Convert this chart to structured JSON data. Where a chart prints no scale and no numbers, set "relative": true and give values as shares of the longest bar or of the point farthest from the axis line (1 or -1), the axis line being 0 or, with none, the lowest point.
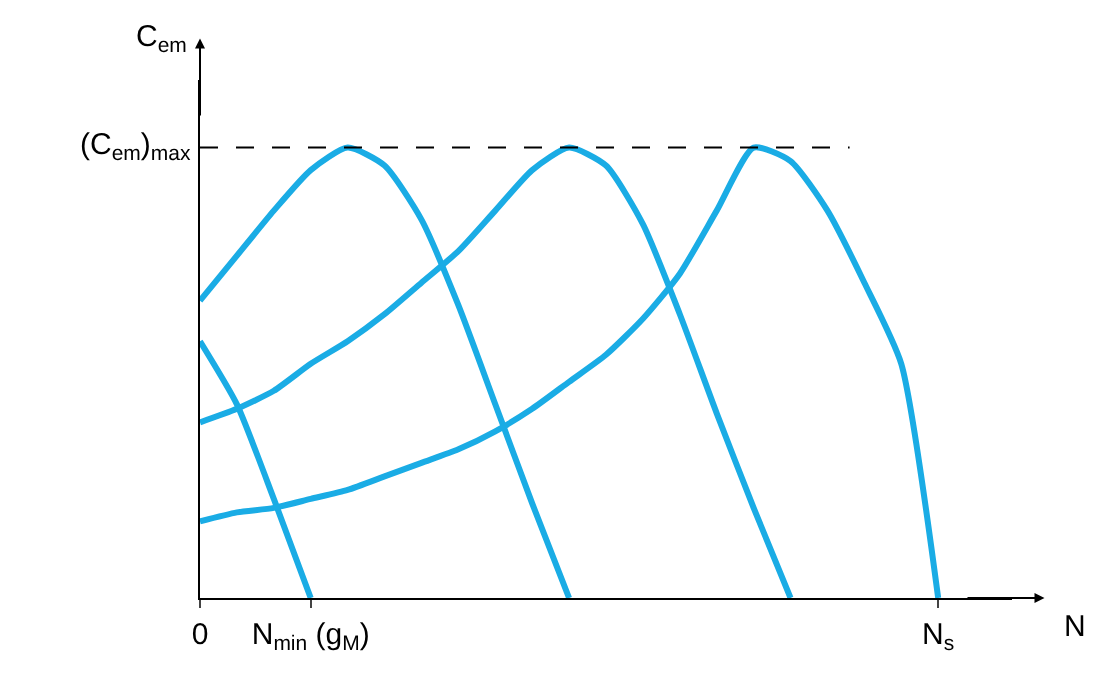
{
  "chart_data": {
    "type": "line",
    "relative": true,
    "xlabel": "N",
    "ylabel": "C$_{em}$",
    "categories": [
      "0",
      null,
      null,
      "N$_{min}$ (g$_{M}$)",
      null,
      null,
      null,
      null,
      null,
      null,
      null,
      null,
      null,
      null,
      null,
      null,
      null,
      null,
      null,
      null,
      "N$_{s}$",
      null,
      null
    ],
    "ref_lines": [
      {
        "axis": "y",
        "value": 1,
        "label": "(C$_{em}$)$_{max}$",
        "line_style": "dashed",
        "color": "#000000"
      }
    ],
    "grid": false,
    "marker": "none",
    "line_style": "solid",
    "series": [
      {
        "color": "#1aace5",
        "values": [
          0.57,
          0.43,
          0.22,
          0,
          null,
          null,
          null,
          null,
          null,
          null,
          null,
          null,
          null,
          null,
          null,
          null,
          null,
          null,
          null,
          null,
          null,
          null,
          null
        ]
      },
      {
        "color": "#1aace5",
        "values": [
          0.66,
          0.76,
          0.86,
          0.95,
          1,
          0.96,
          0.84,
          0.65,
          0.43,
          0.21,
          0,
          null,
          null,
          null,
          null,
          null,
          null,
          null,
          null,
          null,
          null,
          null,
          null
        ]
      },
      {
        "color": "#1aace5",
        "values": [
          0.39,
          0.42,
          0.46,
          0.52,
          0.57,
          0.63,
          0.7,
          0.77,
          0.86,
          0.95,
          1,
          0.96,
          0.83,
          0.63,
          0.41,
          0.2,
          0,
          null,
          null,
          null,
          null,
          null,
          null
        ]
      },
      {
        "color": "#1aace5",
        "values": [
          0.17,
          0.19,
          0.2,
          0.22,
          0.24,
          0.27,
          0.3,
          0.33,
          0.37,
          0.42,
          0.48,
          0.54,
          0.62,
          0.72,
          0.86,
          1,
          0.97,
          0.86,
          0.7,
          0.52,
          0,
          null,
          null
        ]
      }
    ]
  }
}
